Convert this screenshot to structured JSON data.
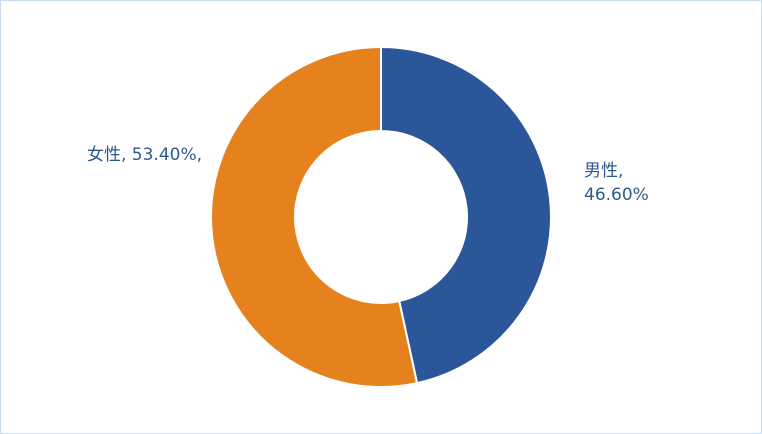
{
  "chart_data": {
    "type": "pie",
    "donut": true,
    "values": [
      46.6,
      53.4
    ],
    "value_labels": [
      "男性, 46.60%",
      "女性, 53.40%,"
    ],
    "colors": [
      "#2b579a",
      "#e6821e"
    ]
  }
}
